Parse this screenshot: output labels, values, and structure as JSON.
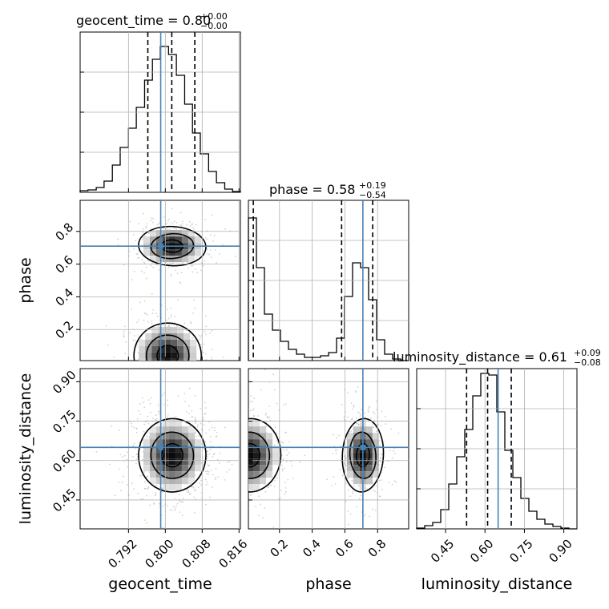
{
  "chart_data": {
    "type": "corner",
    "parameters": [
      "geocent_time",
      "phase",
      "luminosity_distance"
    ],
    "truth_color": "#4682b4",
    "truths": {
      "geocent_time": 0.799,
      "phase": 0.71,
      "luminosity_distance": 0.65
    },
    "marginals": [
      {
        "param": "geocent_time",
        "title_text": "geocent_time = 0.80",
        "err_plus": "+0.00",
        "err_minus": "−0.00",
        "quantiles": [
          0.7962,
          0.8014,
          0.8064
        ],
        "xlim": [
          0.7815,
          0.8163
        ],
        "ylim": [
          0,
          1.0
        ],
        "x_ticks": [
          0.792,
          0.8,
          0.808,
          0.816
        ],
        "x_tick_labels": [
          "0.792",
          "0.800",
          "0.808",
          "0.816"
        ],
        "bin_edges": [
          0.7815,
          0.7832,
          0.785,
          0.7867,
          0.7885,
          0.7902,
          0.792,
          0.7937,
          0.7955,
          0.7972,
          0.7989,
          0.8007,
          0.8024,
          0.8042,
          0.8059,
          0.8076,
          0.8094,
          0.8111,
          0.8129,
          0.8146,
          0.8163
        ],
        "counts": [
          0.01,
          0.015,
          0.03,
          0.07,
          0.17,
          0.28,
          0.4,
          0.53,
          0.7,
          0.83,
          0.91,
          0.86,
          0.73,
          0.55,
          0.37,
          0.24,
          0.13,
          0.06,
          0.02,
          0.005
        ]
      },
      {
        "param": "phase",
        "title_text": "phase = 0.58",
        "err_plus": "+0.19",
        "err_minus": "−0.54",
        "quantiles": [
          0.04,
          0.58,
          0.77
        ],
        "xlim": [
          0.01,
          0.99
        ],
        "ylim": [
          0,
          1.0
        ],
        "x_ticks": [
          0.2,
          0.4,
          0.6,
          0.8
        ],
        "x_tick_labels": [
          "0.2",
          "0.4",
          "0.6",
          "0.8"
        ],
        "bin_edges": [
          0.01,
          0.059,
          0.108,
          0.157,
          0.206,
          0.255,
          0.304,
          0.353,
          0.402,
          0.451,
          0.5,
          0.549,
          0.598,
          0.647,
          0.696,
          0.745,
          0.794,
          0.843,
          0.892,
          0.941,
          0.99
        ],
        "counts": [
          0.89,
          0.58,
          0.29,
          0.19,
          0.12,
          0.07,
          0.04,
          0.02,
          0.02,
          0.03,
          0.05,
          0.14,
          0.4,
          0.61,
          0.58,
          0.38,
          0.13,
          0.04,
          0.01,
          0.0
        ]
      },
      {
        "param": "luminosity_distance",
        "title_text": "luminosity_distance = 0.61",
        "err_plus": "+0.09",
        "err_minus": "−0.08",
        "quantiles": [
          0.53,
          0.61,
          0.7
        ],
        "xlim": [
          0.34,
          0.95
        ],
        "ylim": [
          0,
          1.0
        ],
        "x_ticks": [
          0.45,
          0.6,
          0.75,
          0.9
        ],
        "x_tick_labels": [
          "0.45",
          "0.60",
          "0.75",
          "0.90"
        ],
        "bin_edges": [
          0.34,
          0.3705,
          0.401,
          0.4315,
          0.462,
          0.4925,
          0.523,
          0.5535,
          0.584,
          0.6145,
          0.645,
          0.6755,
          0.706,
          0.7365,
          0.767,
          0.7975,
          0.828,
          0.8585,
          0.889,
          0.9195,
          0.95
        ],
        "counts": [
          0.005,
          0.02,
          0.04,
          0.12,
          0.28,
          0.45,
          0.62,
          0.83,
          0.97,
          0.96,
          0.73,
          0.49,
          0.32,
          0.19,
          0.11,
          0.06,
          0.03,
          0.015,
          0.005,
          0.0
        ]
      }
    ],
    "pairs": [
      {
        "x": "geocent_time",
        "y": "phase",
        "xlim": [
          0.7815,
          0.8163
        ],
        "ylim": [
          0.01,
          0.99
        ],
        "y_ticks": [
          0.2,
          0.4,
          0.6,
          0.8
        ],
        "y_tick_labels": [
          "0.2",
          "0.4",
          "0.6",
          "0.8"
        ],
        "modes": [
          {
            "cx": 0.8015,
            "cy": 0.71,
            "sx": 0.0035,
            "sy": 0.06,
            "w": 0.45
          },
          {
            "cx": 0.8005,
            "cy": 0.04,
            "sx": 0.0035,
            "sy": 0.1,
            "w": 0.55
          }
        ],
        "contour_levels": [
          0.39,
          0.86,
          0.99
        ]
      },
      {
        "x": "geocent_time",
        "y": "luminosity_distance",
        "xlim": [
          0.7815,
          0.8163
        ],
        "ylim": [
          0.34,
          0.95
        ],
        "y_ticks": [
          0.45,
          0.6,
          0.75,
          0.9
        ],
        "y_tick_labels": [
          "0.45",
          "0.60",
          "0.75",
          "0.90"
        ],
        "modes": [
          {
            "cx": 0.8015,
            "cy": 0.62,
            "sx": 0.0035,
            "sy": 0.07,
            "w": 1.0
          }
        ],
        "contour_levels": [
          0.39,
          0.86,
          0.99
        ]
      },
      {
        "x": "phase",
        "y": "luminosity_distance",
        "xlim": [
          0.01,
          0.99
        ],
        "ylim": [
          0.34,
          0.95
        ],
        "modes": [
          {
            "cx": 0.02,
            "cy": 0.62,
            "sx": 0.09,
            "sy": 0.07,
            "w": 0.55
          },
          {
            "cx": 0.71,
            "cy": 0.62,
            "sx": 0.06,
            "sy": 0.07,
            "w": 0.45
          }
        ],
        "contour_levels": [
          0.39,
          0.86,
          0.99
        ]
      }
    ],
    "axis_labels": {
      "x": [
        "geocent_time",
        "phase",
        "luminosity_distance"
      ],
      "y": [
        "phase",
        "luminosity_distance"
      ]
    }
  }
}
